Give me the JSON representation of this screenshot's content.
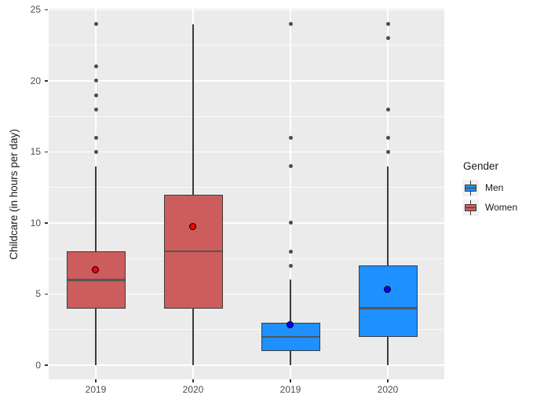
{
  "colors": {
    "panel_background": "#EBEBEB",
    "gridline": "#FFFFFF",
    "box_outline": "#3c3c3c",
    "outlier_point": "#4d4d4d",
    "men_fill": "#1E90FF",
    "women_fill": "#CD5C5C",
    "men_mean_point": "#0000FF",
    "women_mean_point": "#FF0000",
    "axis_text": "#4d4d4d"
  },
  "y_axis": {
    "title": "Childcare (in hours per day)",
    "tick_labels": [
      "0",
      "5",
      "10",
      "15",
      "20",
      "25"
    ],
    "tick_values": [
      0,
      5,
      10,
      15,
      20,
      25
    ],
    "minor_gridline_values": [
      2.5,
      7.5,
      12.5,
      17.5,
      22.5
    ]
  },
  "x_axis": {
    "tick_labels": [
      "2019",
      "2020",
      "2019",
      "2020"
    ]
  },
  "legend": {
    "title": "Gender",
    "items": [
      {
        "label": "Men",
        "color": "#1E90FF"
      },
      {
        "label": "Women",
        "color": "#CD5C5C"
      }
    ]
  },
  "chart_data": {
    "type": "boxplot",
    "title": "",
    "xlabel": "",
    "ylabel": "Childcare (in hours per day)",
    "ylim": [
      0,
      25
    ],
    "grid": "major and minor horizontal white gridlines, vertical gridline per category, gray panel",
    "legend_position": "right",
    "categories": [
      "2019",
      "2020",
      "2019",
      "2020"
    ],
    "series": [
      {
        "name": "Women",
        "year": "2019",
        "fill": "#CD5C5C",
        "mean_color": "#FF0000",
        "whisker_low": 0,
        "q1": 4,
        "median": 6,
        "q3": 8,
        "whisker_high": 14,
        "outliers": [
          15,
          16,
          18,
          19,
          20,
          21,
          24
        ],
        "mean": 6.7
      },
      {
        "name": "Women",
        "year": "2020",
        "fill": "#CD5C5C",
        "mean_color": "#FF0000",
        "whisker_low": 0,
        "q1": 4,
        "median": 8,
        "q3": 12,
        "whisker_high": 24,
        "outliers": [],
        "mean": 9.7
      },
      {
        "name": "Men",
        "year": "2019",
        "fill": "#1E90FF",
        "mean_color": "#0000FF",
        "whisker_low": 0,
        "q1": 1,
        "median": 2,
        "q3": 3,
        "whisker_high": 6,
        "outliers": [
          7,
          8,
          10,
          14,
          16,
          24
        ],
        "mean": 2.8
      },
      {
        "name": "Men",
        "year": "2020",
        "fill": "#1E90FF",
        "mean_color": "#0000FF",
        "whisker_low": 0,
        "q1": 2,
        "median": 4,
        "q3": 7,
        "whisker_high": 14,
        "outliers": [
          15,
          16,
          18,
          23,
          24
        ],
        "mean": 5.3
      }
    ]
  }
}
